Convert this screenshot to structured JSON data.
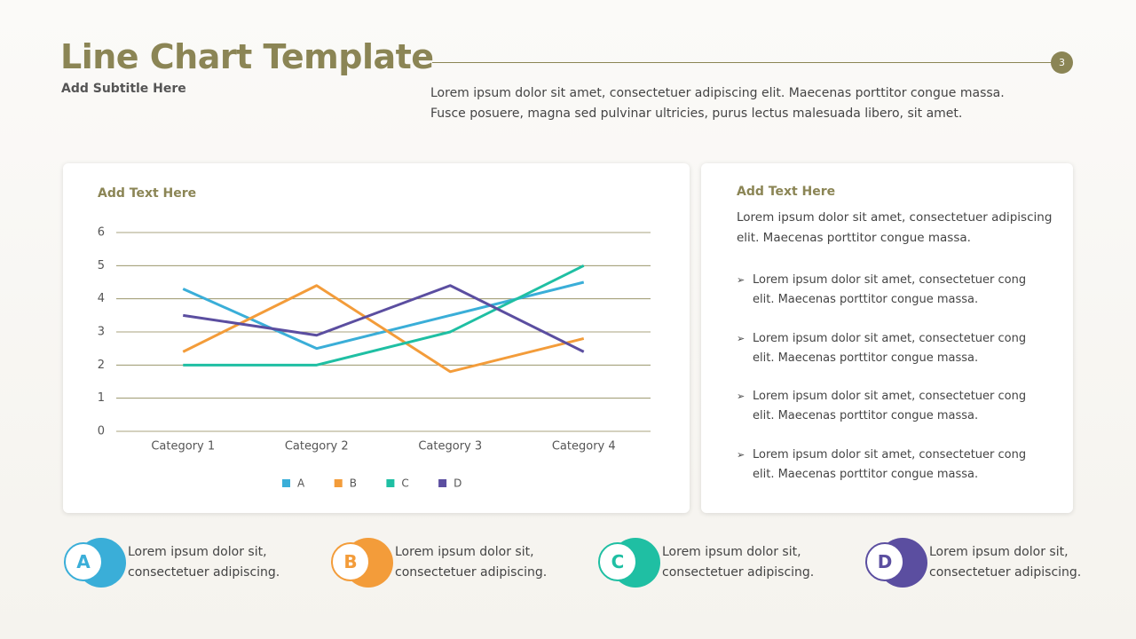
{
  "header": {
    "title": "Line Chart Template",
    "subtitle": "Add Subtitle Here",
    "page_number": "3",
    "intro": "Lorem ipsum dolor sit amet, consectetuer adipiscing elit. Maecenas porttitor congue massa. Fusce posuere, magna sed pulvinar ultricies, purus lectus malesuada libero, sit amet."
  },
  "chart_data": {
    "type": "line",
    "title": "Add Text Here",
    "categories": [
      "Category 1",
      "Category 2",
      "Category 3",
      "Category 4"
    ],
    "series": [
      {
        "name": "A",
        "color": "#3aaed8",
        "values": [
          4.3,
          2.5,
          3.5,
          4.5
        ]
      },
      {
        "name": "B",
        "color": "#f39c3a",
        "values": [
          2.4,
          4.4,
          1.8,
          2.8
        ]
      },
      {
        "name": "C",
        "color": "#1fbfa3",
        "values": [
          2,
          2,
          3,
          5
        ]
      },
      {
        "name": "D",
        "color": "#5b4ea0",
        "values": [
          3.5,
          2.9,
          4.4,
          2.4
        ]
      }
    ],
    "ylim": [
      0,
      6
    ],
    "yticks": [
      0,
      1,
      2,
      3,
      4,
      5,
      6
    ],
    "grid": true,
    "legend": "bottom"
  },
  "side_panel": {
    "title": "Add Text Here",
    "text": "Lorem ipsum dolor sit amet, consectetuer adipiscing elit. Maecenas porttitor congue massa.",
    "bullets": [
      "Lorem ipsum dolor sit amet, consectetuer cong elit. Maecenas porttitor congue massa.",
      "Lorem ipsum dolor sit amet, consectetuer cong elit. Maecenas porttitor congue massa.",
      "Lorem ipsum dolor sit amet, consectetuer cong elit. Maecenas porttitor congue massa.",
      "Lorem ipsum dolor sit amet, consectetuer cong elit. Maecenas porttitor congue massa."
    ]
  },
  "items": [
    {
      "letter": "A",
      "text": "Lorem ipsum dolor sit, consectetuer adipiscing."
    },
    {
      "letter": "B",
      "text": "Lorem ipsum dolor sit, consectetuer adipiscing."
    },
    {
      "letter": "C",
      "text": "Lorem ipsum dolor sit, consectetuer adipiscing."
    },
    {
      "letter": "D",
      "text": "Lorem ipsum dolor sit, consectetuer adipiscing."
    }
  ]
}
